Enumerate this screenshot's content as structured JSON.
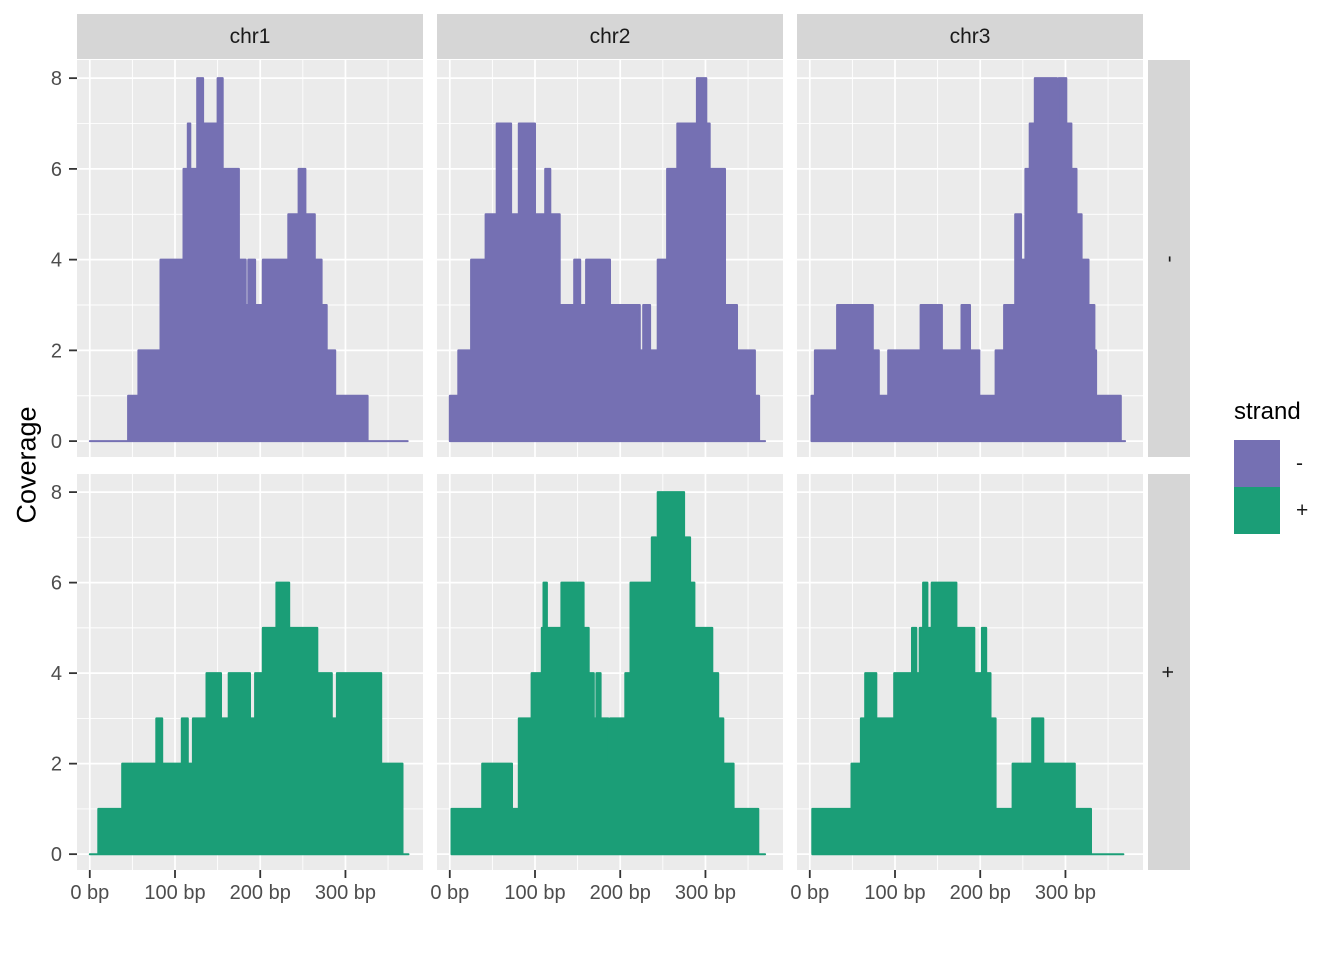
{
  "y_axis": {
    "title": "Coverage",
    "tick_labels": [
      "0",
      "2",
      "4",
      "6",
      "8"
    ],
    "tick_values": [
      0,
      2,
      4,
      6,
      8
    ],
    "minor_ticks": [
      1,
      3,
      5,
      7
    ]
  },
  "x_axis": {
    "tick_labels": [
      "0 bp",
      "100 bp",
      "200 bp",
      "300 bp"
    ],
    "tick_values": [
      0,
      100,
      200,
      300
    ],
    "minor_ticks": [
      50,
      150,
      250,
      350
    ]
  },
  "facets": {
    "columns": [
      "chr1",
      "chr2",
      "chr3"
    ],
    "rows": [
      "-",
      "+"
    ]
  },
  "legend": {
    "title": "strand",
    "entries": [
      {
        "label": "-",
        "color": "#7570B3"
      },
      {
        "label": "+",
        "color": "#1B9E77"
      }
    ]
  },
  "colors": {
    "panel_bg": "#EBEBEB",
    "strip_bg": "#D6D6D6",
    "grid": "#FFFFFF",
    "axis_text": "#4D4D4D",
    "tick_mark": "#333333",
    "minus": "#7570B3",
    "plus": "#1B9E77"
  },
  "chart_data": {
    "type": "area",
    "step": true,
    "x_unit": "bp",
    "xlabel": "",
    "ylabel": "Coverage",
    "xlim": [
      0,
      390
    ],
    "ylim": [
      0,
      8
    ],
    "grid": true,
    "legend_position": "right",
    "facet_columns": [
      "chr1",
      "chr2",
      "chr3"
    ],
    "facet_rows": [
      "-",
      "+"
    ],
    "panels": [
      {
        "chrom": "chr1",
        "strand": "-",
        "steps": [
          [
            0,
            0
          ],
          [
            45,
            1
          ],
          [
            57,
            2
          ],
          [
            83,
            4
          ],
          [
            110,
            6
          ],
          [
            115,
            7
          ],
          [
            118,
            6
          ],
          [
            126,
            8
          ],
          [
            133,
            7
          ],
          [
            150,
            8
          ],
          [
            156,
            6
          ],
          [
            175,
            4
          ],
          [
            183,
            3
          ],
          [
            186,
            4
          ],
          [
            194,
            3
          ],
          [
            203,
            4
          ],
          [
            233,
            5
          ],
          [
            245,
            6
          ],
          [
            253,
            5
          ],
          [
            264,
            4
          ],
          [
            272,
            3
          ],
          [
            278,
            2
          ],
          [
            288,
            1
          ],
          [
            326,
            0
          ]
        ],
        "xend": 373
      },
      {
        "chrom": "chr2",
        "strand": "-",
        "steps": [
          [
            0,
            1
          ],
          [
            10,
            2
          ],
          [
            25,
            4
          ],
          [
            42,
            5
          ],
          [
            55,
            7
          ],
          [
            72,
            5
          ],
          [
            81,
            7
          ],
          [
            100,
            5
          ],
          [
            112,
            6
          ],
          [
            118,
            5
          ],
          [
            129,
            3
          ],
          [
            146,
            4
          ],
          [
            153,
            3
          ],
          [
            160,
            4
          ],
          [
            188,
            3
          ],
          [
            223,
            2
          ],
          [
            227,
            3
          ],
          [
            235,
            2
          ],
          [
            244,
            4
          ],
          [
            255,
            6
          ],
          [
            267,
            7
          ],
          [
            290,
            8
          ],
          [
            301,
            7
          ],
          [
            305,
            6
          ],
          [
            323,
            3
          ],
          [
            337,
            2
          ],
          [
            358,
            1
          ],
          [
            363,
            0
          ]
        ],
        "xend": 370
      },
      {
        "chrom": "chr3",
        "strand": "-",
        "steps": [
          [
            2,
            1
          ],
          [
            6,
            2
          ],
          [
            32,
            3
          ],
          [
            74,
            2
          ],
          [
            81,
            1
          ],
          [
            92,
            2
          ],
          [
            130,
            3
          ],
          [
            155,
            2
          ],
          [
            178,
            3
          ],
          [
            188,
            2
          ],
          [
            199,
            1
          ],
          [
            218,
            2
          ],
          [
            228,
            3
          ],
          [
            241,
            5
          ],
          [
            248,
            4
          ],
          [
            253,
            6
          ],
          [
            258,
            7
          ],
          [
            264,
            8
          ],
          [
            290,
            7
          ],
          [
            292,
            8
          ],
          [
            301,
            7
          ],
          [
            307,
            6
          ],
          [
            313,
            5
          ],
          [
            319,
            4
          ],
          [
            327,
            3
          ],
          [
            334,
            2
          ],
          [
            336,
            1
          ],
          [
            365,
            0
          ]
        ],
        "xend": 370
      },
      {
        "chrom": "chr1",
        "strand": "+",
        "steps": [
          [
            0,
            0
          ],
          [
            10,
            1
          ],
          [
            38,
            2
          ],
          [
            78,
            3
          ],
          [
            85,
            2
          ],
          [
            108,
            3
          ],
          [
            115,
            2
          ],
          [
            121,
            3
          ],
          [
            137,
            4
          ],
          [
            154,
            3
          ],
          [
            163,
            4
          ],
          [
            188,
            3
          ],
          [
            194,
            4
          ],
          [
            203,
            5
          ],
          [
            219,
            6
          ],
          [
            234,
            5
          ],
          [
            267,
            4
          ],
          [
            284,
            3
          ],
          [
            290,
            4
          ],
          [
            342,
            2
          ],
          [
            367,
            0
          ]
        ],
        "xend": 374
      },
      {
        "chrom": "chr2",
        "strand": "+",
        "steps": [
          [
            2,
            1
          ],
          [
            38,
            2
          ],
          [
            73,
            1
          ],
          [
            81,
            3
          ],
          [
            96,
            4
          ],
          [
            108,
            5
          ],
          [
            110,
            6
          ],
          [
            114,
            5
          ],
          [
            131,
            6
          ],
          [
            157,
            5
          ],
          [
            163,
            4
          ],
          [
            169,
            3
          ],
          [
            172,
            4
          ],
          [
            177,
            3
          ],
          [
            186,
            2
          ],
          [
            188,
            3
          ],
          [
            206,
            4
          ],
          [
            212,
            6
          ],
          [
            237,
            7
          ],
          [
            242,
            6
          ],
          [
            244,
            8
          ],
          [
            275,
            7
          ],
          [
            282,
            6
          ],
          [
            287,
            5
          ],
          [
            308,
            4
          ],
          [
            315,
            3
          ],
          [
            321,
            2
          ],
          [
            333,
            1
          ],
          [
            362,
            0
          ]
        ],
        "xend": 370
      },
      {
        "chrom": "chr3",
        "strand": "+",
        "steps": [
          [
            3,
            1
          ],
          [
            49,
            2
          ],
          [
            60,
            3
          ],
          [
            65,
            4
          ],
          [
            78,
            3
          ],
          [
            99,
            4
          ],
          [
            120,
            5
          ],
          [
            125,
            4
          ],
          [
            129,
            5
          ],
          [
            133,
            6
          ],
          [
            138,
            5
          ],
          [
            143,
            6
          ],
          [
            172,
            5
          ],
          [
            193,
            4
          ],
          [
            202,
            5
          ],
          [
            207,
            4
          ],
          [
            212,
            3
          ],
          [
            218,
            1
          ],
          [
            238,
            2
          ],
          [
            261,
            3
          ],
          [
            274,
            2
          ],
          [
            311,
            1
          ],
          [
            330,
            0
          ]
        ],
        "xend": 368
      }
    ]
  }
}
